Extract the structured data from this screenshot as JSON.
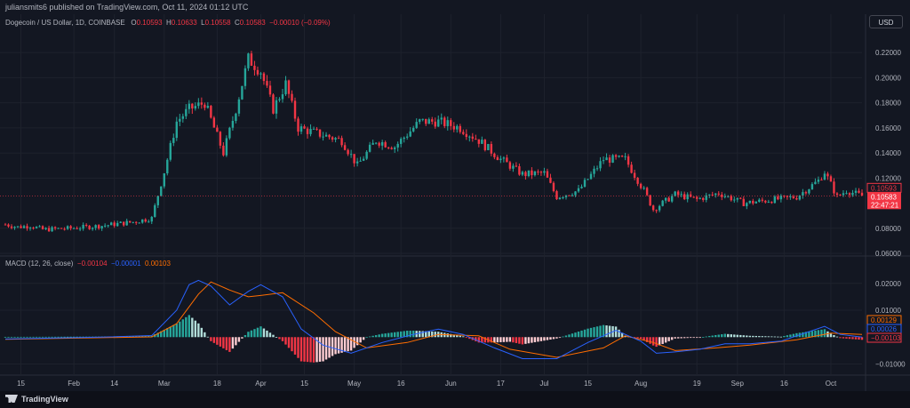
{
  "header": {
    "published": "juliansmits6 published on TradingView.com, Oct 11, 2024 01:12 UTC",
    "currency_button": "USD",
    "symbol": "Dogecoin / US Dollar, 1D, COINBASE",
    "o_label": "O",
    "o_value": "0.10593",
    "h_label": "H",
    "h_value": "0.10633",
    "l_label": "L",
    "l_value": "0.10558",
    "c_label": "C",
    "c_value": "0.10583",
    "change": "−0.00010 (−0.09%)"
  },
  "macd_legend": {
    "name": "MACD (12, 26, close)",
    "hist": "−0.00104",
    "macd": "−0.00001",
    "signal": "0.00103"
  },
  "footer": {
    "brand": "TradingView"
  },
  "colors": {
    "bull": "#26a69a",
    "bear": "#f23645",
    "macd": "#2962ff",
    "signal": "#ff6d00",
    "background": "#131722",
    "grid": "#1e222d"
  },
  "chart_data": [
    {
      "type": "candlestick",
      "title": "Dogecoin / US Dollar, 1D, COINBASE",
      "ylim": [
        0.06,
        0.235
      ],
      "y_ticks": [
        "0.22000",
        "0.20000",
        "0.18000",
        "0.16000",
        "0.14000",
        "0.12000",
        "0.08000",
        "0.06000"
      ],
      "x_ticks": [
        "15",
        "Feb",
        "14",
        "Mar",
        "18",
        "Apr",
        "15",
        "May",
        "16",
        "Jun",
        "17",
        "Jul",
        "15",
        "Aug",
        "19",
        "Sep",
        "16",
        "Oct"
      ],
      "x_tick_dates": [
        "2024-01-15",
        "2024-02-01",
        "2024-02-14",
        "2024-03-01",
        "2024-03-18",
        "2024-04-01",
        "2024-04-15",
        "2024-05-01",
        "2024-05-16",
        "2024-06-01",
        "2024-06-17",
        "2024-07-01",
        "2024-07-15",
        "2024-08-01",
        "2024-08-19",
        "2024-09-01",
        "2024-09-16",
        "2024-10-01"
      ],
      "date_range": [
        "2024-01-10",
        "2024-10-11"
      ],
      "price_labels": [
        "0.10593",
        "0.10583",
        "22:47:21"
      ],
      "close_path": [
        [
          "2024-01-10",
          0.083
        ],
        [
          "2024-01-14",
          0.081
        ],
        [
          "2024-01-18",
          0.082
        ],
        [
          "2024-01-22",
          0.079
        ],
        [
          "2024-01-31",
          0.08
        ],
        [
          "2024-02-10",
          0.082
        ],
        [
          "2024-02-20",
          0.085
        ],
        [
          "2024-02-26",
          0.088
        ],
        [
          "2024-03-01",
          0.125
        ],
        [
          "2024-03-05",
          0.165
        ],
        [
          "2024-03-09",
          0.175
        ],
        [
          "2024-03-14",
          0.18
        ],
        [
          "2024-03-20",
          0.14
        ],
        [
          "2024-03-24",
          0.175
        ],
        [
          "2024-03-28",
          0.215
        ],
        [
          "2024-04-01",
          0.205
        ],
        [
          "2024-04-05",
          0.175
        ],
        [
          "2024-04-09",
          0.195
        ],
        [
          "2024-04-13",
          0.16
        ],
        [
          "2024-04-20",
          0.155
        ],
        [
          "2024-04-27",
          0.15
        ],
        [
          "2024-05-02",
          0.13
        ],
        [
          "2024-05-08",
          0.15
        ],
        [
          "2024-05-14",
          0.145
        ],
        [
          "2024-05-22",
          0.165
        ],
        [
          "2024-05-28",
          0.165
        ],
        [
          "2024-06-04",
          0.16
        ],
        [
          "2024-06-10",
          0.15
        ],
        [
          "2024-06-17",
          0.135
        ],
        [
          "2024-06-24",
          0.123
        ],
        [
          "2024-07-01",
          0.124
        ],
        [
          "2024-07-05",
          0.105
        ],
        [
          "2024-07-12",
          0.11
        ],
        [
          "2024-07-20",
          0.135
        ],
        [
          "2024-07-27",
          0.135
        ],
        [
          "2024-08-02",
          0.11
        ],
        [
          "2024-08-05",
          0.095
        ],
        [
          "2024-08-12",
          0.107
        ],
        [
          "2024-08-19",
          0.103
        ],
        [
          "2024-08-26",
          0.108
        ],
        [
          "2024-09-03",
          0.1
        ],
        [
          "2024-09-10",
          0.102
        ],
        [
          "2024-09-20",
          0.105
        ],
        [
          "2024-09-27",
          0.118
        ],
        [
          "2024-09-29",
          0.125
        ],
        [
          "2024-10-03",
          0.105
        ],
        [
          "2024-10-06",
          0.11
        ],
        [
          "2024-10-11",
          0.10583
        ]
      ],
      "ohlc_last": {
        "open": 0.10593,
        "high": 0.10633,
        "low": 0.10558,
        "close": 0.10583
      }
    },
    {
      "type": "line+bar",
      "title": "MACD (12, 26, close)",
      "ylim": [
        -0.0128,
        0.0262
      ],
      "y_ticks": [
        "0.02000",
        "0.01000",
        "−0.01000"
      ],
      "price_labels": [
        "0.00129",
        "0.00026",
        "−0.00103"
      ],
      "series": [
        {
          "name": "MACD",
          "points": [
            [
              "2024-01-10",
              -0.0007
            ],
            [
              "2024-02-10",
              0.0
            ],
            [
              "2024-02-26",
              0.0006
            ],
            [
              "2024-03-05",
              0.01
            ],
            [
              "2024-03-09",
              0.0195
            ],
            [
              "2024-03-12",
              0.0211
            ],
            [
              "2024-03-16",
              0.019
            ],
            [
              "2024-03-22",
              0.012
            ],
            [
              "2024-03-28",
              0.017
            ],
            [
              "2024-04-01",
              0.0195
            ],
            [
              "2024-04-08",
              0.015
            ],
            [
              "2024-04-14",
              0.003
            ],
            [
              "2024-04-21",
              -0.003
            ],
            [
              "2024-04-30",
              -0.006
            ],
            [
              "2024-05-10",
              -0.002
            ],
            [
              "2024-05-20",
              0.001
            ],
            [
              "2024-05-28",
              0.003
            ],
            [
              "2024-06-05",
              0.001
            ],
            [
              "2024-06-15",
              -0.004
            ],
            [
              "2024-06-24",
              -0.008
            ],
            [
              "2024-07-05",
              -0.008
            ],
            [
              "2024-07-15",
              -0.002
            ],
            [
              "2024-07-24",
              0.0025
            ],
            [
              "2024-08-01",
              -0.0015
            ],
            [
              "2024-08-06",
              -0.006
            ],
            [
              "2024-08-12",
              -0.0055
            ],
            [
              "2024-08-20",
              -0.0045
            ],
            [
              "2024-08-28",
              -0.0025
            ],
            [
              "2024-09-05",
              -0.0025
            ],
            [
              "2024-09-15",
              -0.0015
            ],
            [
              "2024-09-29",
              0.004
            ],
            [
              "2024-10-04",
              0.001
            ],
            [
              "2024-10-11",
              0.0
            ]
          ]
        },
        {
          "name": "Signal",
          "points": [
            [
              "2024-01-10",
              -0.0008
            ],
            [
              "2024-02-10",
              -0.0002
            ],
            [
              "2024-02-26",
              0.0001
            ],
            [
              "2024-03-05",
              0.005
            ],
            [
              "2024-03-12",
              0.016
            ],
            [
              "2024-03-16",
              0.0205
            ],
            [
              "2024-03-22",
              0.0175
            ],
            [
              "2024-03-28",
              0.015
            ],
            [
              "2024-04-01",
              0.0155
            ],
            [
              "2024-04-08",
              0.0165
            ],
            [
              "2024-04-18",
              0.009
            ],
            [
              "2024-04-25",
              0.002
            ],
            [
              "2024-05-05",
              -0.004
            ],
            [
              "2024-05-18",
              -0.002
            ],
            [
              "2024-05-28",
              0.001
            ],
            [
              "2024-06-10",
              0.0005
            ],
            [
              "2024-06-20",
              -0.0045
            ],
            [
              "2024-07-05",
              -0.0075
            ],
            [
              "2024-07-20",
              -0.004
            ],
            [
              "2024-07-27",
              0.0005
            ],
            [
              "2024-08-05",
              -0.002
            ],
            [
              "2024-08-12",
              -0.005
            ],
            [
              "2024-08-25",
              -0.004
            ],
            [
              "2024-09-05",
              -0.003
            ],
            [
              "2024-09-20",
              -0.001
            ],
            [
              "2024-10-01",
              0.0015
            ],
            [
              "2024-10-11",
              0.001
            ]
          ]
        }
      ]
    }
  ]
}
